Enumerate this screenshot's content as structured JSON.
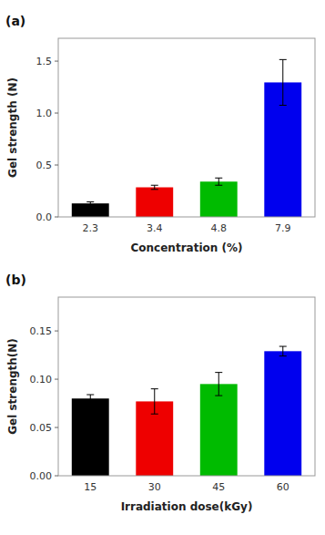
{
  "chart_data": [
    {
      "type": "bar",
      "title": "(a)",
      "categories": [
        "2.3",
        "3.4",
        "4.8",
        "7.9"
      ],
      "values": [
        0.13,
        0.285,
        0.34,
        1.295
      ],
      "errors": [
        0.015,
        0.02,
        0.035,
        0.22
      ],
      "colors": [
        "#000000",
        "#ee0000",
        "#00bb00",
        "#0000ee"
      ],
      "xlabel": "Concentration (%)",
      "ylabel": "Gel strength (N)",
      "ylim": [
        0,
        1.72
      ],
      "yticks": [
        {
          "value": 0.0,
          "label": "0.0"
        },
        0.5,
        {
          "value": 1.0,
          "label": "1.0"
        },
        1.5
      ],
      "grid": false
    },
    {
      "type": "bar",
      "title": "(b)",
      "categories": [
        "15",
        "30",
        "45",
        "60"
      ],
      "values": [
        0.08,
        0.077,
        0.095,
        0.129
      ],
      "errors": [
        0.004,
        0.013,
        0.012,
        0.005
      ],
      "colors": [
        "#000000",
        "#ee0000",
        "#00bb00",
        "#0000ee"
      ],
      "xlabel": "Irradiation dose(kGy)",
      "ylabel": "Gel strength(N)",
      "ylim": [
        0,
        0.185
      ],
      "yticks": [
        {
          "value": 0.0,
          "label": "0.00"
        },
        0.05,
        {
          "value": 0.1,
          "label": "0.10"
        },
        0.15
      ],
      "grid": false
    }
  ]
}
